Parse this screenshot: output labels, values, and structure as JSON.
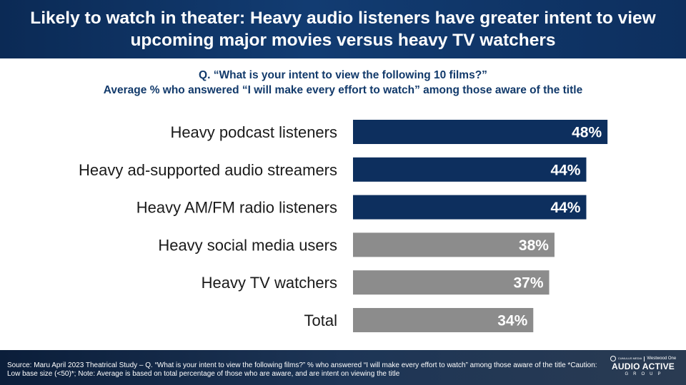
{
  "title": "Likely to watch in theater: Heavy audio listeners have greater intent to view upcoming major movies versus heavy TV watchers",
  "question_line": "Q. “What is your intent to view the following 10 films?”",
  "subtitle_line": "Average % who answered “I will make every effort to watch” among those aware of the title",
  "chart_data": {
    "type": "bar",
    "orientation": "horizontal",
    "categories": [
      "Heavy podcast listeners",
      "Heavy ad-supported audio streamers",
      "Heavy AM/FM radio listeners",
      "Heavy social media users",
      "Heavy TV watchers",
      "Total"
    ],
    "values": [
      48,
      44,
      44,
      38,
      37,
      34
    ],
    "value_labels": [
      "48%",
      "44%",
      "44%",
      "38%",
      "37%",
      "34%"
    ],
    "unit": "%",
    "xlim": [
      0,
      60
    ],
    "bar_colors": [
      "#0d2f5e",
      "#0d2f5e",
      "#0d2f5e",
      "#8c8c8c",
      "#8c8c8c",
      "#8c8c8c"
    ],
    "grid": false,
    "legend": "none"
  },
  "footer": {
    "source": "Source: Maru April 2023 Theatrical Study – Q. “What is your intent to view the following films?” % who answered “I will make every effort to watch” among those aware of the title *Caution: Low base size (<50)*; Note: Average is based on total percentage of those who are aware, and are intent on viewing the title"
  },
  "logo": {
    "brand_left": "CUMULUS MEDIA",
    "brand_right": "Westwood One",
    "name": "AUDIO ACTIVE",
    "sub": "GROUP"
  },
  "colors": {
    "navy": "#0d2f5e",
    "gray": "#8c8c8c",
    "subtitle": "#123a6b"
  }
}
